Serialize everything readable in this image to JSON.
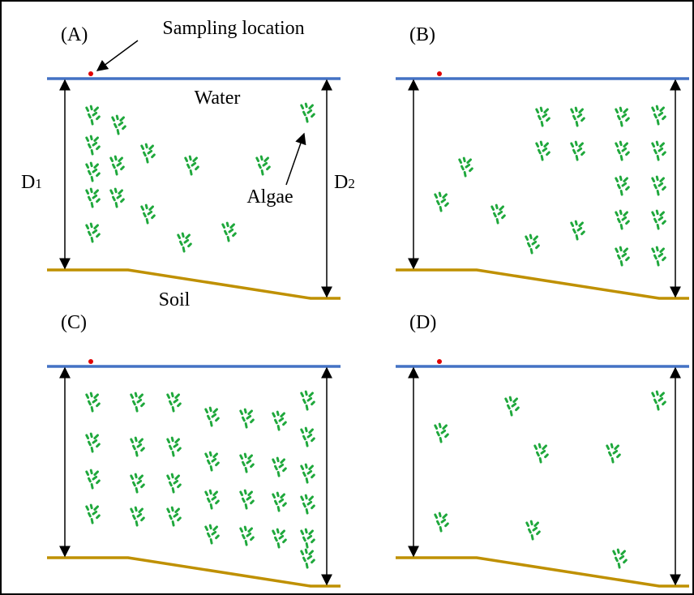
{
  "panels": [
    {
      "label": "(A)"
    },
    {
      "label": "(B)"
    },
    {
      "label": "(C)"
    },
    {
      "label": "(D)"
    }
  ],
  "annotations": {
    "sampling": "Sampling location",
    "water": "Water",
    "algae": "Algae",
    "soil": "Soil",
    "d1": {
      "main": "D",
      "sub": "1"
    },
    "d2": {
      "main": "D",
      "sub": "2"
    }
  }
}
